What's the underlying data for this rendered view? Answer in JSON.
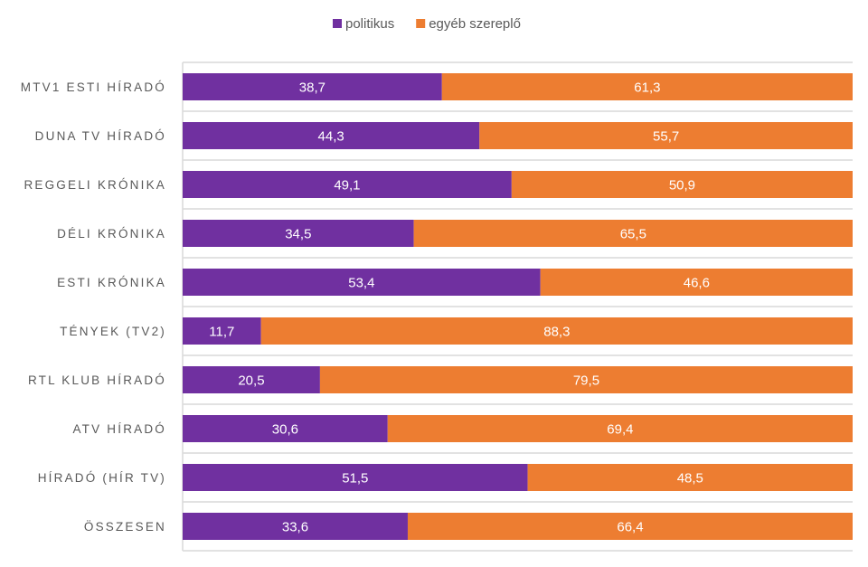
{
  "chart_data": {
    "type": "bar",
    "orientation": "horizontal",
    "stacked": "percent",
    "categories": [
      "MTV1 ESTI HÍRADÓ",
      "DUNA TV HÍRADÓ",
      "REGGELI KRÓNIKA",
      "DÉLI KRÓNIKA",
      "ESTI KRÓNIKA",
      "TÉNYEK (TV2)",
      "RTL KLUB HÍRADÓ",
      "ATV HÍRADÓ",
      "HÍRADÓ (HÍR TV)",
      "ÖSSZESEN"
    ],
    "series": [
      {
        "name": "politikus",
        "color": "#7030A0",
        "values": [
          "38,7",
          "44,3",
          "49,1",
          "34,5",
          "53,4",
          "11,7",
          "20,5",
          "30,6",
          "51,5",
          "33,6"
        ]
      },
      {
        "name": "egyéb szereplő",
        "color": "#ED7D31",
        "values": [
          "61,3",
          "55,7",
          "50,9",
          "65,5",
          "46,6",
          "88,3",
          "79,5",
          "69,4",
          "48,5",
          "66,4"
        ]
      }
    ],
    "xlim": [
      0,
      100
    ],
    "legend": "top-center",
    "grid": "horizontal category separators"
  }
}
